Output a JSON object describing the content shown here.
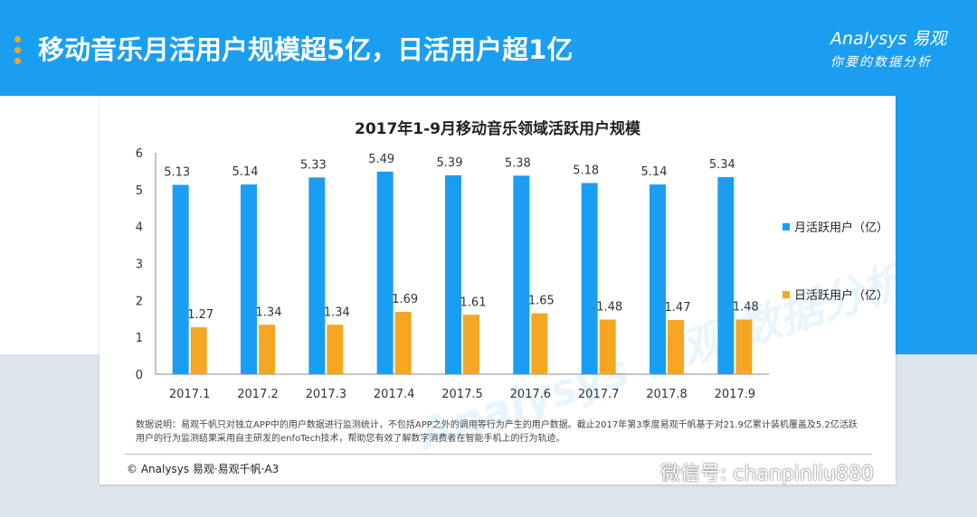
{
  "page": {
    "title": "移动音乐月活用户规模超5亿，日活用户超1亿",
    "brand": "Analysys 易观",
    "slogan": "你要的数据分析",
    "bg_watermark": "Analysys 易观 数据分析",
    "note": "数据说明：易观千帆只对独立APP中的用户数据进行监测统计，不包括APP之外的调用等行为产生的用户数据。截止2017年第3季度易观千帆基于对21.9亿累计装机覆盖及5.2亿活跃用户的行为监测结果采用自主研发的enfoTech技术，帮助您有效了解数字消费者在智能手机上的行为轨迹。",
    "copyright": "© Analysys 易观·易观千帆·A3",
    "social_watermark": "微信号: chanpinliu880",
    "colors": {
      "header": "#1a9ef2",
      "accent": "#f5a623",
      "mau": "#1a9ef2",
      "dau": "#f5a623"
    }
  },
  "chart_data": {
    "type": "bar",
    "title": "2017年1-9月移动音乐领域活跃用户规模",
    "categories": [
      "2017.1",
      "2017.2",
      "2017.3",
      "2017.4",
      "2017.5",
      "2017.6",
      "2017.7",
      "2017.8",
      "2017.9"
    ],
    "series": [
      {
        "name": "月活跃用户（亿）",
        "values": [
          5.13,
          5.14,
          5.33,
          5.49,
          5.39,
          5.38,
          5.18,
          5.14,
          5.34
        ]
      },
      {
        "name": "日活跃用户（亿）",
        "values": [
          1.27,
          1.34,
          1.34,
          1.69,
          1.61,
          1.65,
          1.48,
          1.47,
          1.48
        ]
      }
    ],
    "ylim": [
      0,
      6
    ],
    "yticks": [
      0,
      1,
      2,
      3,
      4,
      5,
      6
    ],
    "xlabel": "",
    "ylabel": "",
    "legend": "right",
    "grid": false
  }
}
